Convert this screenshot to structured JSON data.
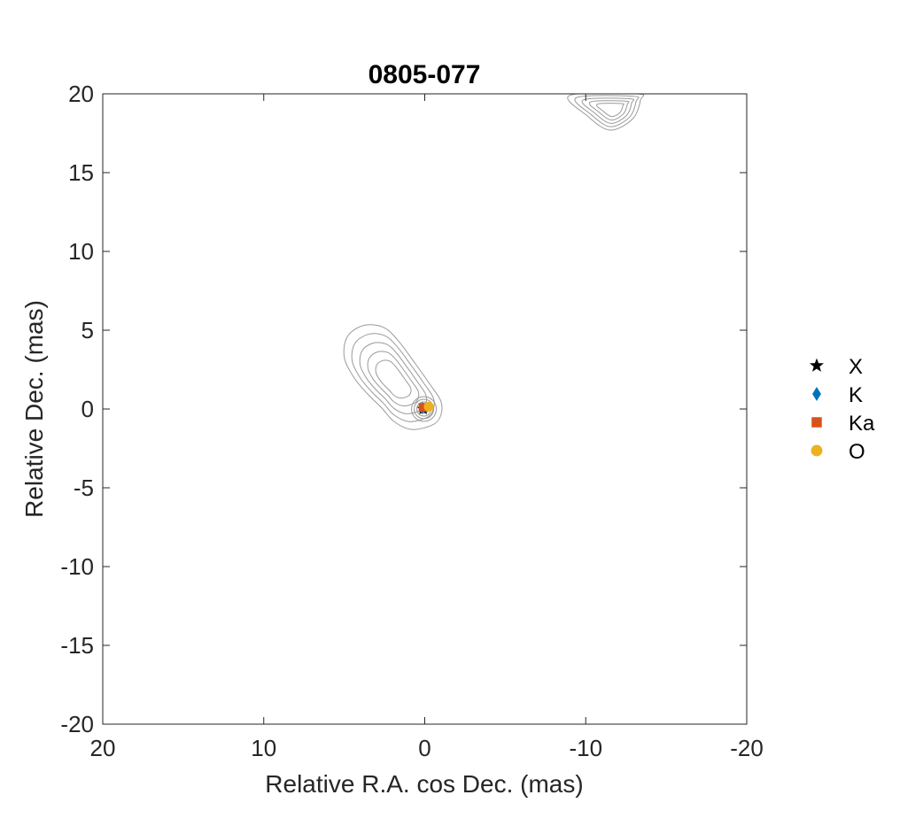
{
  "chart_data": {
    "type": "scatter",
    "title": "0805-077",
    "xlabel": "Relative R.A. cos Dec. (mas)",
    "ylabel": "Relative Dec. (mas)",
    "xlim": [
      20,
      -20
    ],
    "ylim": [
      -20,
      20
    ],
    "x_reversed": true,
    "xticks": [
      20,
      10,
      0,
      -10,
      -20
    ],
    "xtick_labels": [
      "20",
      "10",
      "0",
      "-10",
      "-20"
    ],
    "yticks": [
      20,
      15,
      10,
      5,
      0,
      -5,
      -10,
      -15,
      -20
    ],
    "ytick_labels": [
      "20",
      "15",
      "10",
      "5",
      "0",
      "-5",
      "-10",
      "-15",
      "-20"
    ],
    "grid": false,
    "legend_position": "outside-right",
    "colors": {
      "X": "#000000",
      "K": "#0072BD",
      "Ka": "#D95319",
      "O": "#EDB120",
      "contour": "#9a9a9a"
    },
    "series": [
      {
        "name": "X",
        "marker": "star",
        "color": "#000000",
        "points": [
          [
            0.1,
            0.0
          ]
        ]
      },
      {
        "name": "K",
        "marker": "diamond",
        "color": "#0072BD",
        "points": [
          [
            0.15,
            0.05
          ]
        ]
      },
      {
        "name": "Ka",
        "marker": "square",
        "color": "#D95319",
        "points": [
          [
            0.1,
            0.1
          ]
        ]
      },
      {
        "name": "O",
        "marker": "circle",
        "color": "#EDB120",
        "points": [
          [
            -0.25,
            0.15
          ]
        ]
      }
    ],
    "contours": [
      {
        "component": "core-jet",
        "levels": 5,
        "outer": [
          [
            -0.5,
            -1.0
          ],
          [
            0.8,
            -1.3
          ],
          [
            1.9,
            -0.8
          ],
          [
            2.7,
            0.1
          ],
          [
            3.5,
            0.9
          ],
          [
            4.4,
            2.0
          ],
          [
            5.0,
            3.3
          ],
          [
            4.8,
            4.6
          ],
          [
            3.8,
            5.3
          ],
          [
            2.6,
            5.2
          ],
          [
            1.7,
            4.4
          ],
          [
            0.6,
            2.9
          ],
          [
            -0.3,
            1.6
          ],
          [
            -1.0,
            0.5
          ],
          [
            -1.0,
            -0.4
          ]
        ]
      },
      {
        "component": "north-west-feature",
        "levels": 5,
        "outer": [
          [
            -9.0,
            19.9
          ],
          [
            -10.1,
            18.6
          ],
          [
            -11.5,
            17.7
          ],
          [
            -12.9,
            18.4
          ],
          [
            -13.4,
            19.6
          ],
          [
            -13.2,
            20.0
          ]
        ]
      }
    ]
  }
}
